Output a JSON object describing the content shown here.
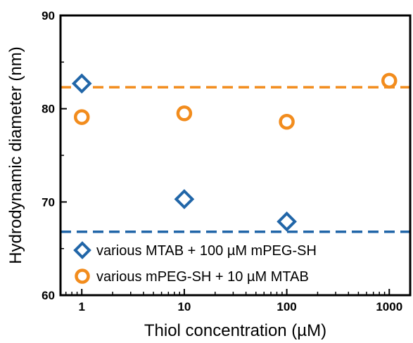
{
  "chart_data": {
    "type": "scatter",
    "title": "",
    "xlabel": "Thiol concentration (µM)",
    "ylabel": "Hydrodynamic diameter (nm)",
    "x_scale": "log",
    "xlim": [
      0.62,
      1600
    ],
    "ylim": [
      60,
      90
    ],
    "x_ticks": [
      1,
      10,
      100,
      1000
    ],
    "x_tick_labels": [
      "1",
      "10",
      "100",
      "1000"
    ],
    "y_ticks": [
      60,
      70,
      80,
      90
    ],
    "y_tick_labels": [
      "60",
      "70",
      "80",
      "90"
    ],
    "grid": false,
    "legend_position": "bottom-left",
    "series": [
      {
        "name": "various MTAB + 100 µM mPEG-SH",
        "marker": "diamond",
        "color": "#2166a8",
        "x": [
          1,
          10,
          100
        ],
        "y": [
          82.7,
          70.3,
          67.9
        ]
      },
      {
        "name": "various mPEG-SH + 10 µM MTAB",
        "marker": "circle",
        "color": "#f28c1d",
        "x": [
          1,
          10,
          100,
          1000
        ],
        "y": [
          79.1,
          79.5,
          78.6,
          83.0
        ]
      }
    ],
    "reference_lines": [
      {
        "y": 82.3,
        "color": "#f28c1d",
        "style": "dashed"
      },
      {
        "y": 66.8,
        "color": "#2166a8",
        "style": "dashed"
      }
    ]
  }
}
